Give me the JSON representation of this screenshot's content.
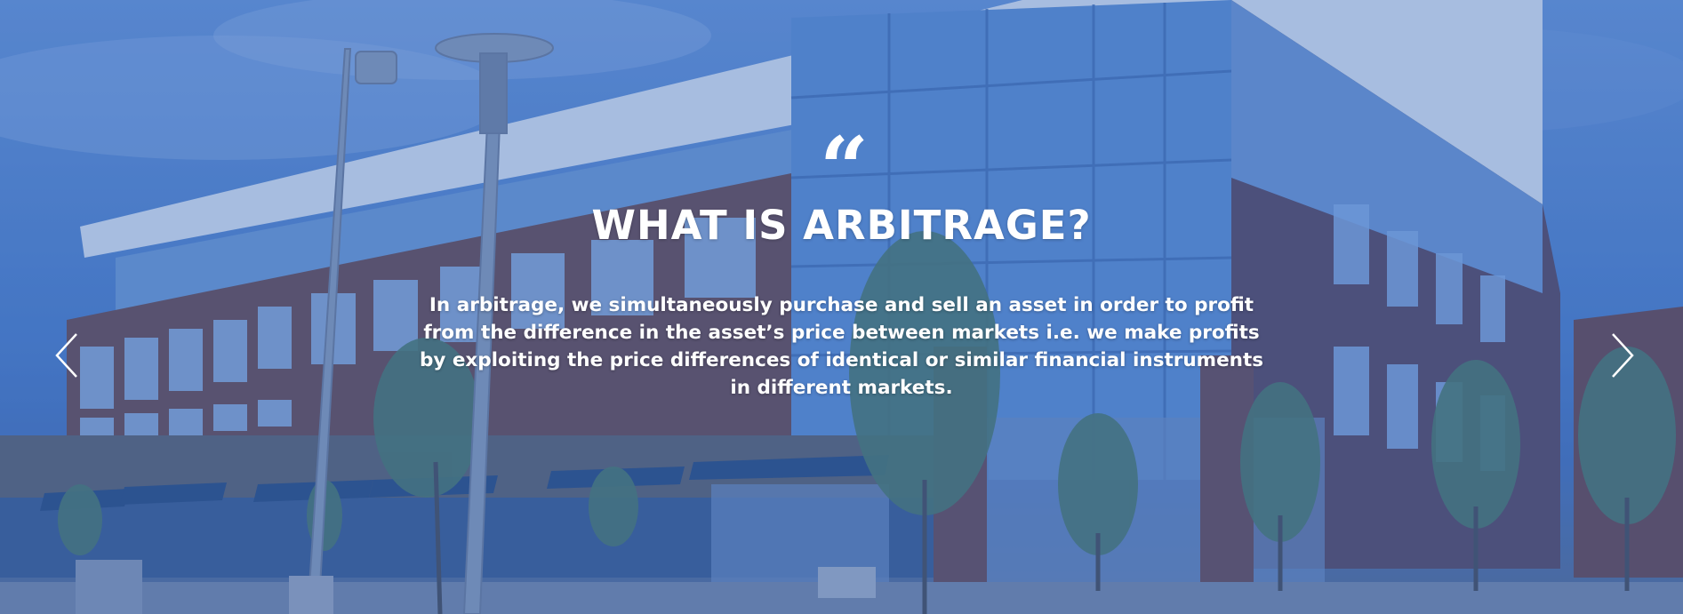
{
  "slide": {
    "quote_mark": "“",
    "title": "WHAT IS ARBITRAGE?",
    "body": "In arbitrage, we simultaneously purchase and sell an asset in order to profit from the difference in the asset’s price between markets i.e. we make profits by exploiting the price differences of identical or similar financial instruments in different markets."
  },
  "navigation": {
    "previous_icon": "chevron-left-icon",
    "next_icon": "chevron-right-icon"
  },
  "colors": {
    "overlay": "#265cbe",
    "text": "#ffffff"
  }
}
